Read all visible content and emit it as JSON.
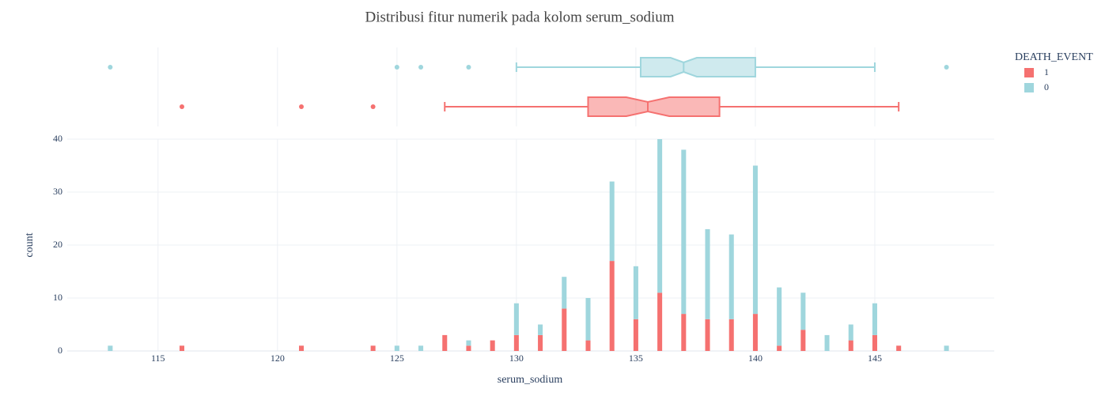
{
  "chart_data": {
    "type": "histogram",
    "title": "Distribusi fitur numerik pada kolom serum_sodium",
    "x_label": "serum_sodium",
    "y_label": "count",
    "legend_title": "DEATH_EVENT",
    "legend_position": "right",
    "barmode": "stack",
    "marginal": "box",
    "grid": true,
    "x": [
      113,
      116,
      121,
      124,
      125,
      126,
      127,
      128,
      129,
      130,
      131,
      132,
      133,
      134,
      135,
      136,
      137,
      138,
      139,
      140,
      141,
      142,
      143,
      144,
      145,
      146,
      148
    ],
    "series": [
      {
        "name": "1",
        "color": "#f57170",
        "values": [
          0,
          1,
          1,
          1,
          0,
          0,
          3,
          1,
          2,
          3,
          3,
          8,
          2,
          17,
          6,
          11,
          7,
          6,
          6,
          7,
          1,
          4,
          0,
          2,
          3,
          1,
          0
        ],
        "box": {
          "lowerfence": 127,
          "q1": 133,
          "median": 135.5,
          "q3": 138.5,
          "upperfence": 146,
          "notch": [
            134.6,
            136.4
          ],
          "outliers": [
            116,
            121,
            124
          ]
        }
      },
      {
        "name": "0",
        "color": "#9fd6dd",
        "values": [
          1,
          0,
          0,
          0,
          1,
          1,
          0,
          1,
          0,
          6,
          2,
          6,
          8,
          15,
          10,
          29,
          31,
          17,
          16,
          28,
          11,
          7,
          3,
          3,
          6,
          0,
          1
        ],
        "box": {
          "lowerfence": 130,
          "q1": 135.2,
          "median": 137,
          "q3": 140,
          "upperfence": 145,
          "notch": [
            136.45,
            137.55
          ],
          "outliers": [
            113,
            125,
            126,
            128,
            148
          ]
        }
      }
    ],
    "xlim": [
      111.2,
      150
    ],
    "xticks": [
      115,
      120,
      125,
      130,
      135,
      140,
      145
    ],
    "ylim": [
      0,
      40
    ],
    "yticks": [
      0,
      10,
      20,
      30,
      40
    ]
  }
}
